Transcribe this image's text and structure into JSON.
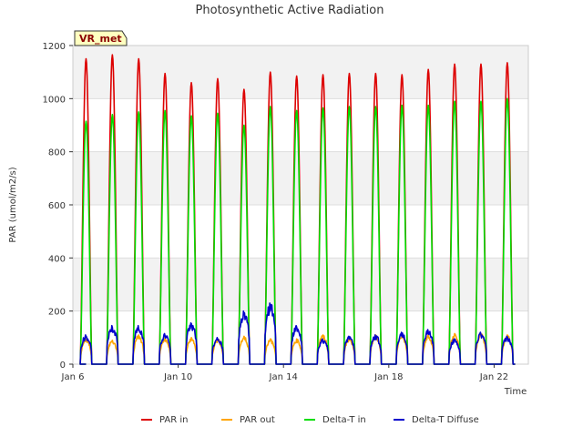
{
  "chart_data": {
    "type": "line",
    "title": "Photosynthetic Active Radiation",
    "xlabel": "Time",
    "ylabel": "PAR (umol/m2/s)",
    "site_label": "VR_met",
    "xlim": [
      6,
      23.3
    ],
    "ylim": [
      0,
      1200
    ],
    "x_ticks": [
      {
        "value": 6,
        "label": "Jan 6"
      },
      {
        "value": 10,
        "label": "Jan 10"
      },
      {
        "value": 14,
        "label": "Jan 14"
      },
      {
        "value": 18,
        "label": "Jan 18"
      },
      {
        "value": 22,
        "label": "Jan 22"
      }
    ],
    "y_ticks": [
      0,
      200,
      400,
      600,
      800,
      1000,
      1200
    ],
    "grid": true,
    "band_shading": true,
    "days": [
      6.5,
      7.5,
      8.5,
      9.5,
      10.5,
      11.5,
      12.5,
      13.5,
      14.5,
      15.5,
      16.5,
      17.5,
      18.5,
      19.5,
      20.5,
      21.5,
      22.5
    ],
    "series": [
      {
        "name": "PAR in",
        "color": "#dd0000",
        "daily_peaks": [
          1150,
          1165,
          1150,
          1095,
          1060,
          1075,
          1035,
          1100,
          1085,
          1090,
          1095,
          1095,
          1090,
          1110,
          1130,
          1130,
          1135
        ]
      },
      {
        "name": "PAR out",
        "color": "#ffa500",
        "daily_peaks": [
          95,
          90,
          110,
          100,
          100,
          95,
          105,
          95,
          95,
          110,
          100,
          110,
          110,
          110,
          115,
          115,
          110
        ]
      },
      {
        "name": "Delta-T in",
        "color": "#00dd00",
        "daily_peaks": [
          915,
          940,
          950,
          955,
          935,
          945,
          900,
          970,
          955,
          965,
          970,
          970,
          975,
          975,
          990,
          990,
          1000
        ]
      },
      {
        "name": "Delta-T Diffuse",
        "color": "#0000cc",
        "daily_peaks": [
          110,
          145,
          145,
          115,
          155,
          100,
          200,
          230,
          145,
          95,
          105,
          110,
          120,
          130,
          95,
          120,
          105
        ]
      }
    ]
  }
}
